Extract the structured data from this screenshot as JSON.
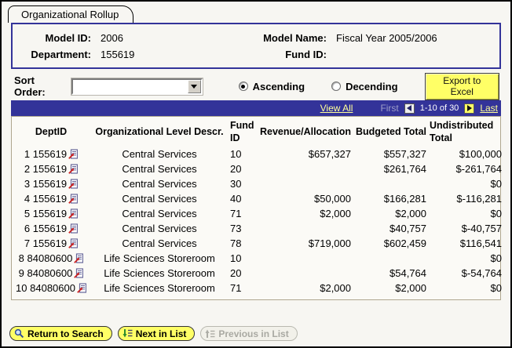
{
  "tab": {
    "label": "Organizational Rollup"
  },
  "header": {
    "model_id_label": "Model ID:",
    "model_id": "2006",
    "model_name_label": "Model Name:",
    "model_name": "Fiscal Year 2005/2006",
    "department_label": "Department:",
    "department": "155619",
    "fund_id_label": "Fund ID:",
    "fund_id": ""
  },
  "controls": {
    "sort_order_label": "Sort Order:",
    "sort_order_value": "",
    "ascending_label": "Ascending",
    "descending_label": "Decending",
    "ascending_selected": true,
    "export_button": "Export to Excel"
  },
  "grid_nav": {
    "view_all": "View All",
    "first": "First",
    "range": "1-10 of 30",
    "last": "Last"
  },
  "table": {
    "columns": [
      "DeptID",
      "Organizational Level Descr.",
      "Fund ID",
      "Revenue/Allocation",
      "Budgeted Total",
      "Undistributed Total"
    ],
    "rows": [
      {
        "num": "1",
        "deptid": "155619",
        "descr": "Central Services",
        "fund": "10",
        "revenue": "$657,327",
        "budgeted": "$557,327",
        "undistributed": "$100,000"
      },
      {
        "num": "2",
        "deptid": "155619",
        "descr": "Central Services",
        "fund": "20",
        "revenue": "",
        "budgeted": "$261,764",
        "undistributed": "$-261,764"
      },
      {
        "num": "3",
        "deptid": "155619",
        "descr": "Central Services",
        "fund": "30",
        "revenue": "",
        "budgeted": "",
        "undistributed": "$0"
      },
      {
        "num": "4",
        "deptid": "155619",
        "descr": "Central Services",
        "fund": "40",
        "revenue": "$50,000",
        "budgeted": "$166,281",
        "undistributed": "$-116,281"
      },
      {
        "num": "5",
        "deptid": "155619",
        "descr": "Central Services",
        "fund": "71",
        "revenue": "$2,000",
        "budgeted": "$2,000",
        "undistributed": "$0"
      },
      {
        "num": "6",
        "deptid": "155619",
        "descr": "Central Services",
        "fund": "73",
        "revenue": "",
        "budgeted": "$40,757",
        "undistributed": "$-40,757"
      },
      {
        "num": "7",
        "deptid": "155619",
        "descr": "Central Services",
        "fund": "78",
        "revenue": "$719,000",
        "budgeted": "$602,459",
        "undistributed": "$116,541"
      },
      {
        "num": "8",
        "deptid": "84080600",
        "descr": "Life Sciences Storeroom",
        "fund": "10",
        "revenue": "",
        "budgeted": "",
        "undistributed": "$0"
      },
      {
        "num": "9",
        "deptid": "84080600",
        "descr": "Life Sciences Storeroom",
        "fund": "20",
        "revenue": "",
        "budgeted": "$54,764",
        "undistributed": "$-54,764"
      },
      {
        "num": "10",
        "deptid": "84080600",
        "descr": "Life Sciences Storeroom",
        "fund": "71",
        "revenue": "$2,000",
        "budgeted": "$2,000",
        "undistributed": "$0"
      }
    ]
  },
  "footer": {
    "return_to_search": "Return to Search",
    "next_in_list": "Next in List",
    "previous_in_list": "Previous in List"
  },
  "colors": {
    "grid_bar": "#333399",
    "key_box_border": "#333399",
    "link_yellow": "#FFFF99",
    "button_yellow": "#FFFF66",
    "table_border_tan": "#AFA78F"
  }
}
